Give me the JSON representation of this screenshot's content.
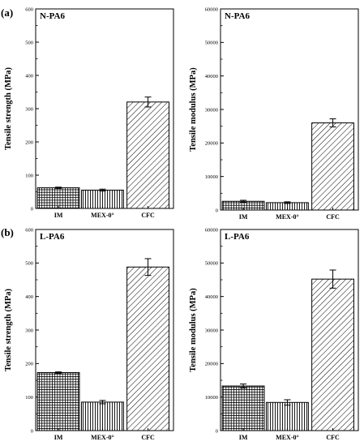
{
  "panel_labels": [
    "(a)",
    "(b)"
  ],
  "chart_data": [
    {
      "type": "bar",
      "title": "N-PA6",
      "ylabel": "Tensile strength (MPa)",
      "categories": [
        "IM",
        "MEX-0°",
        "CFC"
      ],
      "values": [
        62,
        55,
        320
      ],
      "errors": [
        2,
        3,
        15
      ],
      "ylim": [
        0,
        600
      ],
      "yticks": [
        0,
        100,
        200,
        300,
        400,
        500,
        600
      ],
      "patterns": [
        "grid",
        "vertical",
        "diagonal"
      ]
    },
    {
      "type": "bar",
      "title": "N-PA6",
      "ylabel": "Tensile modulus (MPa)",
      "categories": [
        "IM",
        "MEX-0°",
        "CFC"
      ],
      "values": [
        2600,
        2200,
        26000
      ],
      "errors": [
        300,
        250,
        1200
      ],
      "ylim": [
        0,
        60000
      ],
      "yticks": [
        0,
        10000,
        20000,
        30000,
        40000,
        50000,
        60000
      ],
      "patterns": [
        "grid",
        "vertical",
        "diagonal"
      ]
    },
    {
      "type": "bar",
      "title": "L-PA6",
      "ylabel": "Tensile strength (MPa)",
      "categories": [
        "IM",
        "MEX-0°",
        "CFC"
      ],
      "values": [
        173,
        85,
        488
      ],
      "errors": [
        2,
        5,
        25
      ],
      "ylim": [
        0,
        600
      ],
      "yticks": [
        0,
        100,
        200,
        300,
        400,
        500,
        600
      ],
      "patterns": [
        "grid",
        "vertical",
        "diagonal"
      ]
    },
    {
      "type": "bar",
      "title": "L-PA6",
      "ylabel": "Tensile modulus (MPa)",
      "categories": [
        "IM",
        "MEX-0°",
        "CFC"
      ],
      "values": [
        13300,
        8400,
        45200
      ],
      "errors": [
        600,
        800,
        2700
      ],
      "ylim": [
        0,
        60000
      ],
      "yticks": [
        0,
        10000,
        20000,
        30000,
        40000,
        50000,
        60000
      ],
      "patterns": [
        "grid",
        "vertical",
        "diagonal"
      ]
    }
  ]
}
